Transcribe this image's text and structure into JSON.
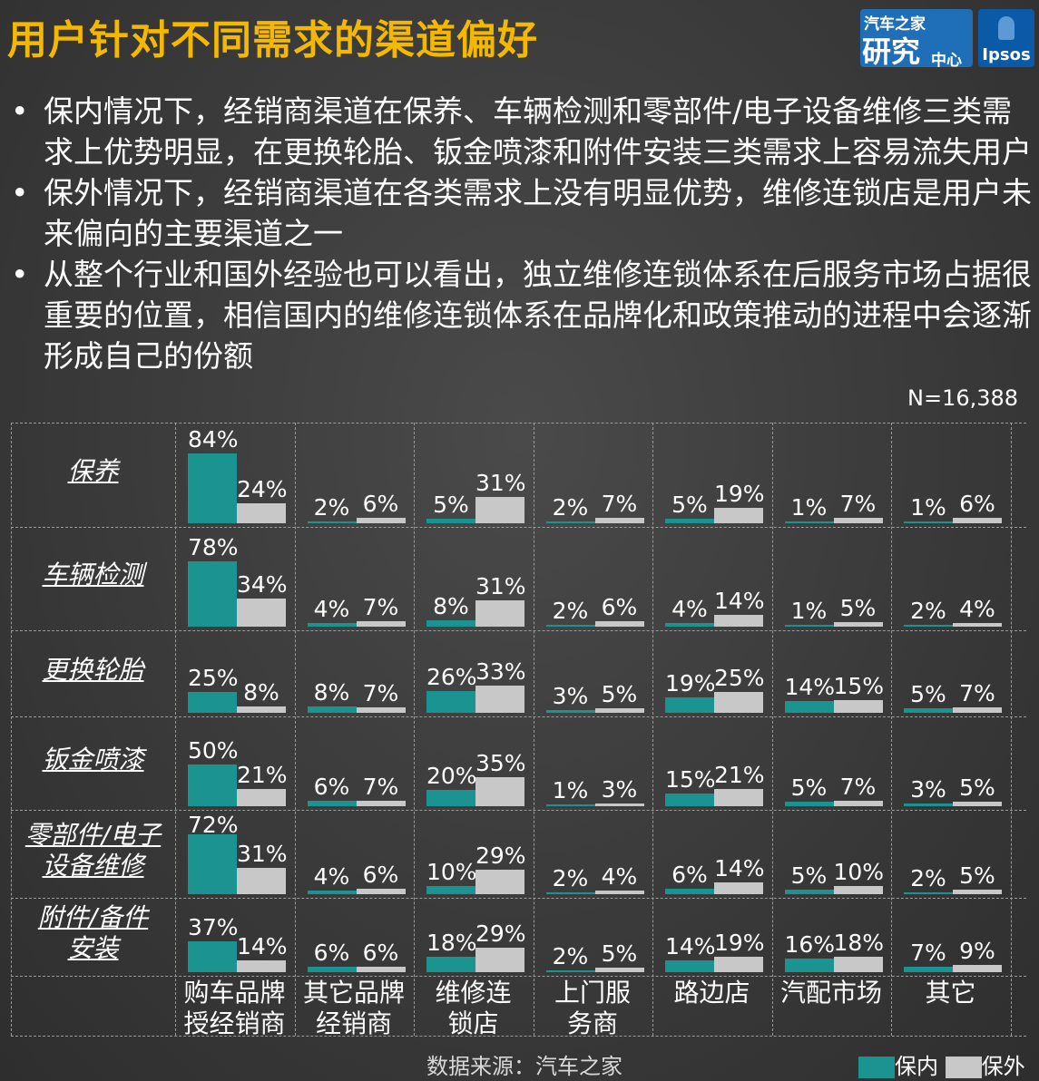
{
  "title": "用户针对不同需求的渠道偏好",
  "logos": {
    "autohome_line1": "汽车之家",
    "autohome_line2": "研究",
    "autohome_line3": "中心",
    "ipsos": "Ipsos"
  },
  "bullets": [
    "保内情况下，经销商渠道在保养、车辆检测和零部件/电子设备维修三类需求上优势明显，在更换轮胎、钣金喷漆和附件安装三类需求上容易流失用户",
    "保外情况下，经销商渠道在各类需求上没有明显优势，维修连锁店是用户未来偏向的主要渠道之一",
    "从整个行业和国外经验也可以看出，独立维修连锁体系在后服务市场占据很重要的位置，相信国内的维修连锁体系在品牌化和政策推动的进程中会逐渐形成自己的份额"
  ],
  "bullet_mark": "•",
  "sample_size": "N=16,388",
  "source": "数据来源：汽车之家",
  "chart_data": {
    "type": "bar",
    "rows": [
      {
        "lines": [
          "保养"
        ]
      },
      {
        "lines": [
          "车辆检测"
        ]
      },
      {
        "lines": [
          "更换轮胎"
        ]
      },
      {
        "lines": [
          "钣金喷漆"
        ]
      },
      {
        "lines": [
          "零部件/电子",
          "设备维修"
        ]
      },
      {
        "lines": [
          "附件/备件",
          "安装"
        ]
      }
    ],
    "columns": [
      {
        "lines": [
          "购车品牌",
          "授经销商"
        ]
      },
      {
        "lines": [
          "其它品牌",
          "经销商"
        ]
      },
      {
        "lines": [
          "维修连",
          "锁店"
        ]
      },
      {
        "lines": [
          "上门服",
          "务商"
        ]
      },
      {
        "lines": [
          "路边店"
        ]
      },
      {
        "lines": [
          "汽配市场"
        ]
      },
      {
        "lines": [
          "其它"
        ]
      }
    ],
    "series": [
      {
        "name": "保内",
        "color": "#1a9391",
        "values": [
          [
            84,
            2,
            5,
            2,
            5,
            1,
            1
          ],
          [
            78,
            4,
            8,
            2,
            4,
            1,
            2
          ],
          [
            25,
            8,
            26,
            3,
            19,
            14,
            5
          ],
          [
            50,
            6,
            20,
            1,
            15,
            5,
            3
          ],
          [
            72,
            4,
            10,
            2,
            6,
            5,
            2
          ],
          [
            37,
            6,
            18,
            2,
            14,
            16,
            7
          ]
        ]
      },
      {
        "name": "保外",
        "color": "#c8c8c8",
        "values": [
          [
            24,
            6,
            31,
            7,
            19,
            7,
            6
          ],
          [
            34,
            7,
            31,
            6,
            14,
            5,
            4
          ],
          [
            8,
            7,
            33,
            5,
            25,
            15,
            7
          ],
          [
            21,
            7,
            35,
            3,
            21,
            7,
            5
          ],
          [
            31,
            6,
            29,
            4,
            14,
            10,
            5
          ],
          [
            14,
            6,
            29,
            5,
            19,
            18,
            9
          ]
        ]
      }
    ],
    "value_suffix": "%",
    "legend": {
      "position": "bottom-right"
    },
    "grid": true
  }
}
